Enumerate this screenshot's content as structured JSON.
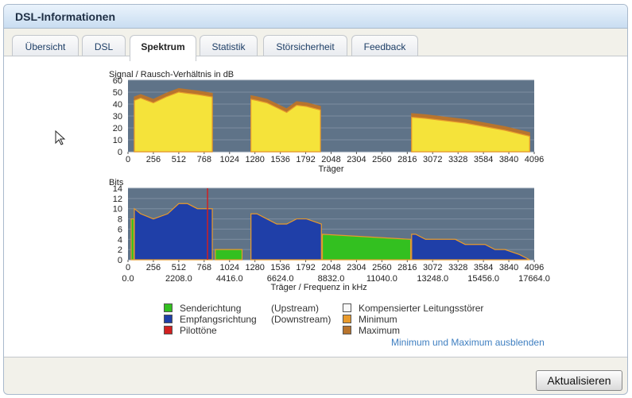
{
  "window": {
    "title": "DSL-Informationen"
  },
  "tabs": [
    {
      "label": "Übersicht",
      "active": false
    },
    {
      "label": "DSL",
      "active": false
    },
    {
      "label": "Spektrum",
      "active": true
    },
    {
      "label": "Statistik",
      "active": false
    },
    {
      "label": "Störsicherheit",
      "active": false
    },
    {
      "label": "Feedback",
      "active": false
    }
  ],
  "colors": {
    "plot_bg": "#5f7388",
    "grid": "#7d8ea1",
    "snr_fill": "#f5e33a",
    "snr_max": "#b8742d",
    "snr_min": "#e89a2c",
    "upstream": "#33c020",
    "downstream": "#1f3fa8",
    "pilot": "#d12020",
    "bits_edge": "#e89a2c"
  },
  "chart_data": [
    {
      "type": "area",
      "title": "Signal / Rausch-Verhältnis in dB",
      "xlabel": "Träger",
      "ylabel": "",
      "xlim": [
        0,
        4096
      ],
      "ylim": [
        0,
        60
      ],
      "x_ticks": [
        "0",
        "256",
        "512",
        "768",
        "1024",
        "1280",
        "1536",
        "1792",
        "2048",
        "2304",
        "2560",
        "2816",
        "3072",
        "3328",
        "3584",
        "3840",
        "4096"
      ],
      "y_ticks": [
        "0",
        "10",
        "20",
        "30",
        "40",
        "50",
        "60"
      ],
      "grid": true,
      "series": [
        {
          "segments": [
            {
              "x": [
                64,
                128,
                256,
                384,
                512,
                600,
                700,
                850
              ],
              "y": [
                43,
                45,
                41,
                46,
                50,
                49,
                48,
                46
              ]
            },
            {
              "x": [
                1240,
                1300,
                1400,
                1500,
                1600,
                1700,
                1800,
                1940
              ],
              "y": [
                44,
                43,
                41,
                37,
                33,
                39,
                38,
                35
              ]
            },
            {
              "x": [
                2860,
                3000,
                3200,
                3400,
                3600,
                3800,
                3950,
                4050
              ],
              "y": [
                29,
                28,
                26,
                24,
                21,
                18,
                15,
                13
              ]
            }
          ]
        }
      ]
    },
    {
      "type": "area",
      "title": "Bits",
      "xlabel": "Träger / Frequenz in kHz",
      "ylabel": "",
      "xlim": [
        0,
        4096
      ],
      "ylim": [
        0,
        14
      ],
      "x_ticks": [
        "0",
        "256",
        "512",
        "768",
        "1024",
        "1280",
        "1536",
        "1792",
        "2048",
        "2304",
        "2560",
        "2816",
        "3072",
        "3328",
        "3584",
        "3840",
        "4096"
      ],
      "x_ticks_khz": [
        "0.0",
        "2208.0",
        "4416.0",
        "6624.0",
        "8832.0",
        "11040.0",
        "13248.0",
        "15456.0",
        "17664.0"
      ],
      "y_ticks": [
        "0",
        "2",
        "4",
        "6",
        "8",
        "10",
        "12",
        "14"
      ],
      "grid": true,
      "upstream_segments": [
        {
          "x": [
            32,
            60
          ],
          "y": [
            8,
            8
          ]
        },
        {
          "x": [
            880,
            1150
          ],
          "y": [
            2,
            2
          ]
        },
        {
          "x": [
            1960,
            2850
          ],
          "y": [
            5,
            4
          ]
        }
      ],
      "downstream_segments": [
        {
          "x": [
            64,
            128,
            256,
            400,
            512,
            600,
            700,
            850
          ],
          "y": [
            10,
            9,
            8,
            9,
            11,
            11,
            10,
            10
          ]
        },
        {
          "x": [
            1240,
            1300,
            1400,
            1500,
            1600,
            1700,
            1800,
            1950
          ],
          "y": [
            9,
            9,
            8,
            7,
            7,
            8,
            8,
            7
          ]
        },
        {
          "x": [
            2860,
            2900,
            3000,
            3100,
            3200,
            3300,
            3400,
            3600,
            3700,
            3800,
            3950,
            4050
          ],
          "y": [
            5,
            5,
            4,
            4,
            4,
            4,
            3,
            3,
            2,
            2,
            1,
            0
          ]
        }
      ],
      "pilot_tones": [
        802
      ]
    }
  ],
  "legend": {
    "upstream": {
      "label": "Senderichtung",
      "note": "(Upstream)"
    },
    "downstream": {
      "label": "Empfangsrichtung",
      "note": "(Downstream)"
    },
    "pilot": {
      "label": "Pilottöne"
    },
    "compensated": {
      "label": "Kompensierter Leitungsstörer"
    },
    "minimum": {
      "label": "Minimum"
    },
    "maximum": {
      "label": "Maximum"
    }
  },
  "links": {
    "toggle_minmax": "Minimum und Maximum ausblenden"
  },
  "buttons": {
    "refresh": "Aktualisieren"
  }
}
